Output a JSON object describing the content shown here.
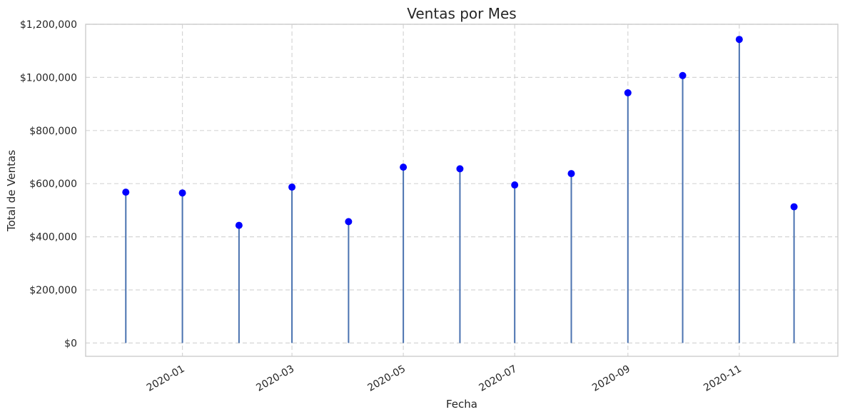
{
  "chart_data": {
    "type": "stem",
    "title": "Ventas por Mes",
    "xlabel": "Fecha",
    "ylabel": "Total de Ventas",
    "x_tick_labels": [
      "2020-01",
      "2020-03",
      "2020-05",
      "2020-07",
      "2020-09",
      "2020-11"
    ],
    "y_tick_labels": [
      "$0",
      "$200,000",
      "$400,000",
      "$600,000",
      "$800,000",
      "$1,000,000",
      "$1,200,000"
    ],
    "ylim": [
      -50000,
      1200000
    ],
    "xlim": [
      "2019-11-09",
      "2020-12-25"
    ],
    "grid": true,
    "colors": {
      "stem": "#4a72b0",
      "marker": "#0000ff",
      "grid": "#d5d5d5"
    },
    "x": [
      "2019-12-01",
      "2020-01-01",
      "2020-02-01",
      "2020-03-01",
      "2020-04-01",
      "2020-05-01",
      "2020-06-01",
      "2020-07-01",
      "2020-08-01",
      "2020-09-01",
      "2020-10-01",
      "2020-11-01",
      "2020-12-01"
    ],
    "values": [
      568000,
      565000,
      443000,
      587000,
      457000,
      662000,
      656000,
      595000,
      638000,
      942000,
      1007000,
      1143000,
      513000
    ]
  }
}
